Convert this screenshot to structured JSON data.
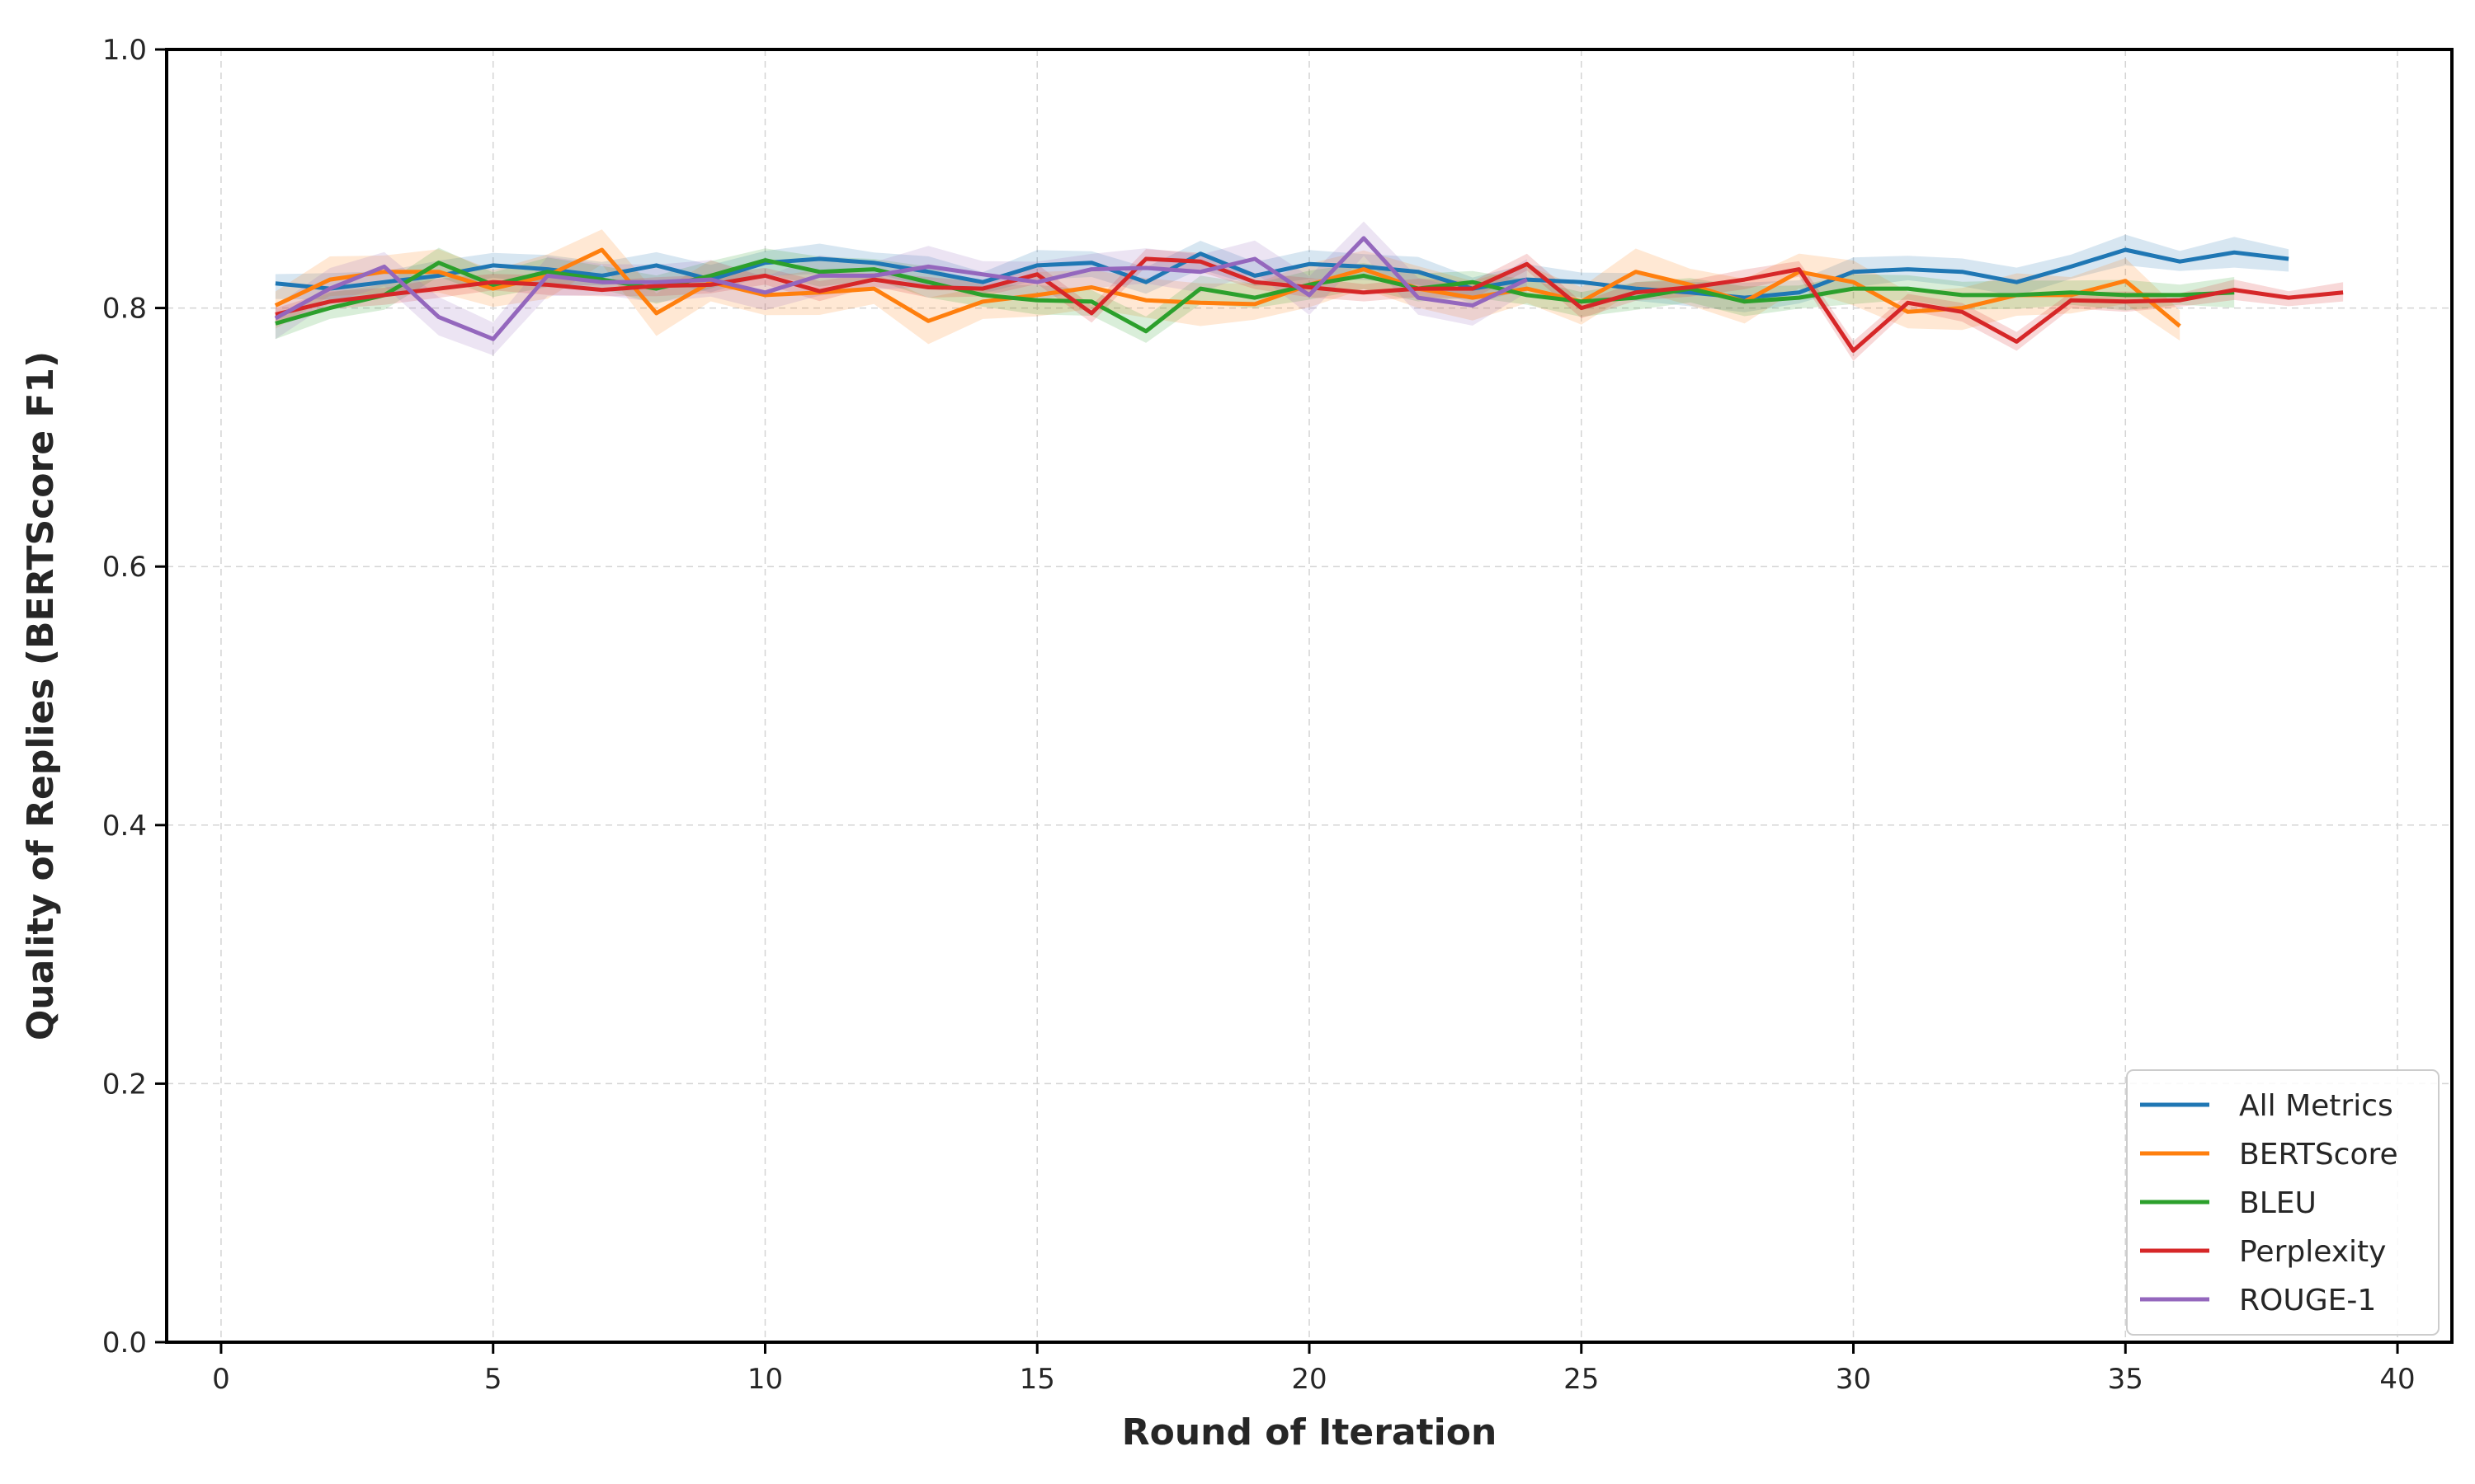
{
  "chart_data": {
    "type": "line",
    "title": "",
    "xlabel": "Round of Iteration",
    "ylabel": "Quality of Replies (BERTScore F1)",
    "xlim": [
      -1,
      41
    ],
    "ylim": [
      0.0,
      1.0
    ],
    "xticks": [
      "0",
      "5",
      "10",
      "15",
      "20",
      "25",
      "30",
      "35",
      "40"
    ],
    "yticks": [
      "0.0",
      "0.2",
      "0.4",
      "0.6",
      "0.8",
      "1.0"
    ],
    "grid": true,
    "legend_position": "lower-right",
    "series": [
      {
        "name": "All Metrics",
        "color": "#1f77b4",
        "x": [
          1,
          2,
          3,
          4,
          5,
          6,
          7,
          8,
          9,
          10,
          11,
          12,
          13,
          14,
          15,
          16,
          17,
          18,
          19,
          20,
          21,
          22,
          23,
          24,
          25,
          26,
          27,
          28,
          29,
          30,
          31,
          32,
          33,
          34,
          35,
          36,
          37,
          38
        ],
        "y": [
          0.819,
          0.815,
          0.82,
          0.825,
          0.833,
          0.83,
          0.825,
          0.833,
          0.822,
          0.835,
          0.838,
          0.835,
          0.828,
          0.82,
          0.833,
          0.835,
          0.82,
          0.842,
          0.825,
          0.834,
          0.832,
          0.828,
          0.815,
          0.822,
          0.82,
          0.815,
          0.812,
          0.808,
          0.812,
          0.828,
          0.83,
          0.828,
          0.82,
          0.832,
          0.845,
          0.836,
          0.843,
          0.838
        ],
        "band": 0.012
      },
      {
        "name": "BERTScore",
        "color": "#ff7f0e",
        "x": [
          1,
          2,
          3,
          4,
          5,
          6,
          7,
          8,
          9,
          10,
          11,
          12,
          13,
          14,
          15,
          16,
          17,
          18,
          19,
          20,
          21,
          22,
          23,
          24,
          25,
          26,
          27,
          28,
          29,
          30,
          31,
          32,
          33,
          34,
          35,
          36
        ],
        "y": [
          0.802,
          0.822,
          0.828,
          0.828,
          0.815,
          0.825,
          0.845,
          0.796,
          0.82,
          0.81,
          0.812,
          0.815,
          0.79,
          0.805,
          0.81,
          0.816,
          0.806,
          0.804,
          0.803,
          0.818,
          0.83,
          0.815,
          0.808,
          0.815,
          0.805,
          0.828,
          0.818,
          0.805,
          0.828,
          0.82,
          0.797,
          0.8,
          0.81,
          0.81,
          0.821,
          0.786
        ],
        "band": 0.018
      },
      {
        "name": "BLEU",
        "color": "#2ca02c",
        "x": [
          1,
          2,
          3,
          4,
          5,
          6,
          7,
          8,
          9,
          10,
          11,
          12,
          13,
          14,
          15,
          16,
          17,
          18,
          19,
          20,
          21,
          22,
          23,
          24,
          25,
          26,
          27,
          28,
          29,
          30,
          31,
          32,
          33,
          34,
          35,
          36,
          37
        ],
        "y": [
          0.788,
          0.8,
          0.81,
          0.835,
          0.818,
          0.828,
          0.822,
          0.815,
          0.825,
          0.837,
          0.828,
          0.83,
          0.82,
          0.81,
          0.806,
          0.805,
          0.782,
          0.815,
          0.808,
          0.818,
          0.825,
          0.815,
          0.82,
          0.81,
          0.805,
          0.808,
          0.815,
          0.805,
          0.808,
          0.815,
          0.815,
          0.81,
          0.81,
          0.812,
          0.81,
          0.81,
          0.812
        ],
        "band": 0.012
      },
      {
        "name": "Perplexity",
        "color": "#d62728",
        "x": [
          1,
          2,
          3,
          4,
          5,
          6,
          7,
          8,
          9,
          10,
          11,
          12,
          13,
          14,
          15,
          16,
          17,
          18,
          19,
          20,
          21,
          22,
          23,
          24,
          25,
          26,
          27,
          28,
          29,
          30,
          31,
          32,
          33,
          34,
          35,
          36,
          37,
          38,
          39
        ],
        "y": [
          0.795,
          0.805,
          0.81,
          0.815,
          0.82,
          0.818,
          0.814,
          0.817,
          0.818,
          0.825,
          0.813,
          0.822,
          0.816,
          0.815,
          0.826,
          0.796,
          0.838,
          0.836,
          0.82,
          0.816,
          0.812,
          0.815,
          0.815,
          0.834,
          0.8,
          0.812,
          0.816,
          0.822,
          0.83,
          0.767,
          0.804,
          0.797,
          0.774,
          0.806,
          0.805,
          0.806,
          0.814,
          0.808,
          0.812
        ],
        "band": 0.008
      },
      {
        "name": "ROUGE-1",
        "color": "#9467bd",
        "x": [
          1,
          2,
          3,
          4,
          5,
          6,
          7,
          8,
          9,
          10,
          11,
          12,
          13,
          14,
          15,
          16,
          17,
          18,
          19,
          20,
          21,
          22,
          23,
          24
        ],
        "y": [
          0.792,
          0.815,
          0.832,
          0.793,
          0.776,
          0.825,
          0.82,
          0.82,
          0.822,
          0.812,
          0.825,
          0.825,
          0.832,
          0.826,
          0.82,
          0.83,
          0.831,
          0.828,
          0.838,
          0.81,
          0.854,
          0.808,
          0.802,
          0.822
        ],
        "band": 0.016
      }
    ]
  }
}
